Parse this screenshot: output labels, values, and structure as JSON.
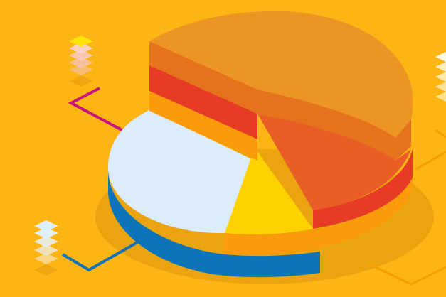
{
  "colors": {
    "background": "#FDB515",
    "shadow": "#E8A20F",
    "orange_top": "#EC9524",
    "orange_side": "#E5731E",
    "red_orange_top": "#E95D27",
    "red_side": "#E63B25",
    "amber_side": "#FB9A0B",
    "light_blue_top": "#DBECFB",
    "blue_side": "#0C74B8",
    "yellow_wedge": "#FFD100",
    "magenta_line": "#C7157D",
    "blue_line": "#1573B5",
    "orange_line": "#F5A000"
  },
  "icons": {
    "top_left_stack": "layer-stack-icon",
    "bottom_left_stack": "layer-stack-icon",
    "right_edge_stack": "layer-stack-icon"
  }
}
